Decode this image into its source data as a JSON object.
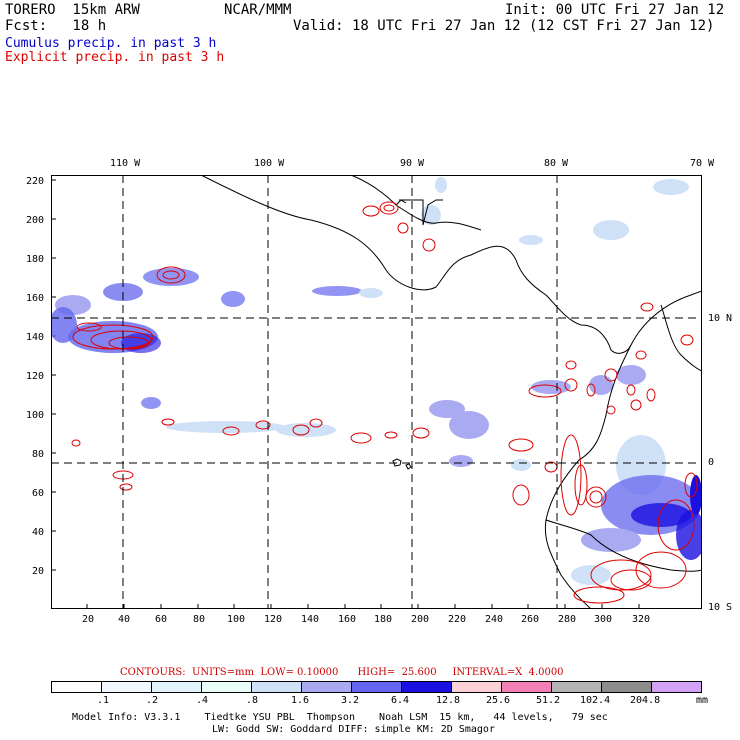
{
  "header": {
    "model": "TORERO  15km ARW",
    "org": "NCAR/MMM",
    "init": "Init: 00 UTC Fri 27 Jan 12",
    "fcst": "Fcst:   18 h",
    "valid": "Valid: 18 UTC Fri 27 Jan 12 (12 CST Fri 27 Jan 12)",
    "field1": "Cumulus precip. in past 3 h",
    "field2": "Explicit precip. in past 3 h",
    "field1_color": "#0000cc",
    "field2_color": "#dd0000"
  },
  "map": {
    "lon_labels": [
      "110 W",
      "100 W",
      "90 W",
      "80 W",
      "70 W"
    ],
    "lat_labels": [
      "10 N",
      "0",
      "10 S"
    ],
    "y_ticks": [
      "220",
      "200",
      "180",
      "160",
      "140",
      "120",
      "100",
      "80",
      "60",
      "40",
      "20"
    ],
    "x_ticks": [
      "20",
      "40",
      "60",
      "80",
      "100",
      "120",
      "140",
      "160",
      "180",
      "200",
      "220",
      "240",
      "260",
      "280",
      "300",
      "320"
    ]
  },
  "contours": {
    "line": "CONTOURS:  UNITS=mm  LOW= 0.10000      HIGH=  25.600     INTERVAL=X  4.0000",
    "units": "mm",
    "low": 0.1,
    "high": 25.6,
    "interval": 4.0,
    "color": "#cc0000"
  },
  "legend": {
    "labels": [
      ".1",
      ".2",
      ".4",
      ".8",
      "1.6",
      "3.2",
      "6.4",
      "12.8",
      "25.6",
      "51.2",
      "102.4",
      "204.8"
    ],
    "unit": "mm",
    "colors": [
      "#ffffff",
      "#f2f8ff",
      "#e3f3fb",
      "#eafffa",
      "#cfe1f7",
      "#a9aaf2",
      "#6366ee",
      "#1a10e0",
      "#fbd0d6",
      "#f27fb6",
      "#b3b3b3",
      "#8c8c8c",
      "#d4a2f4"
    ]
  },
  "footer": {
    "line1": "Model Info: V3.3.1    Tiedtke YSU PBL  Thompson    Noah LSM  15 km,   44 levels,   79 sec",
    "line2": "LW: Godd SW: Goddard DIFF: simple KM: 2D Smagor"
  }
}
